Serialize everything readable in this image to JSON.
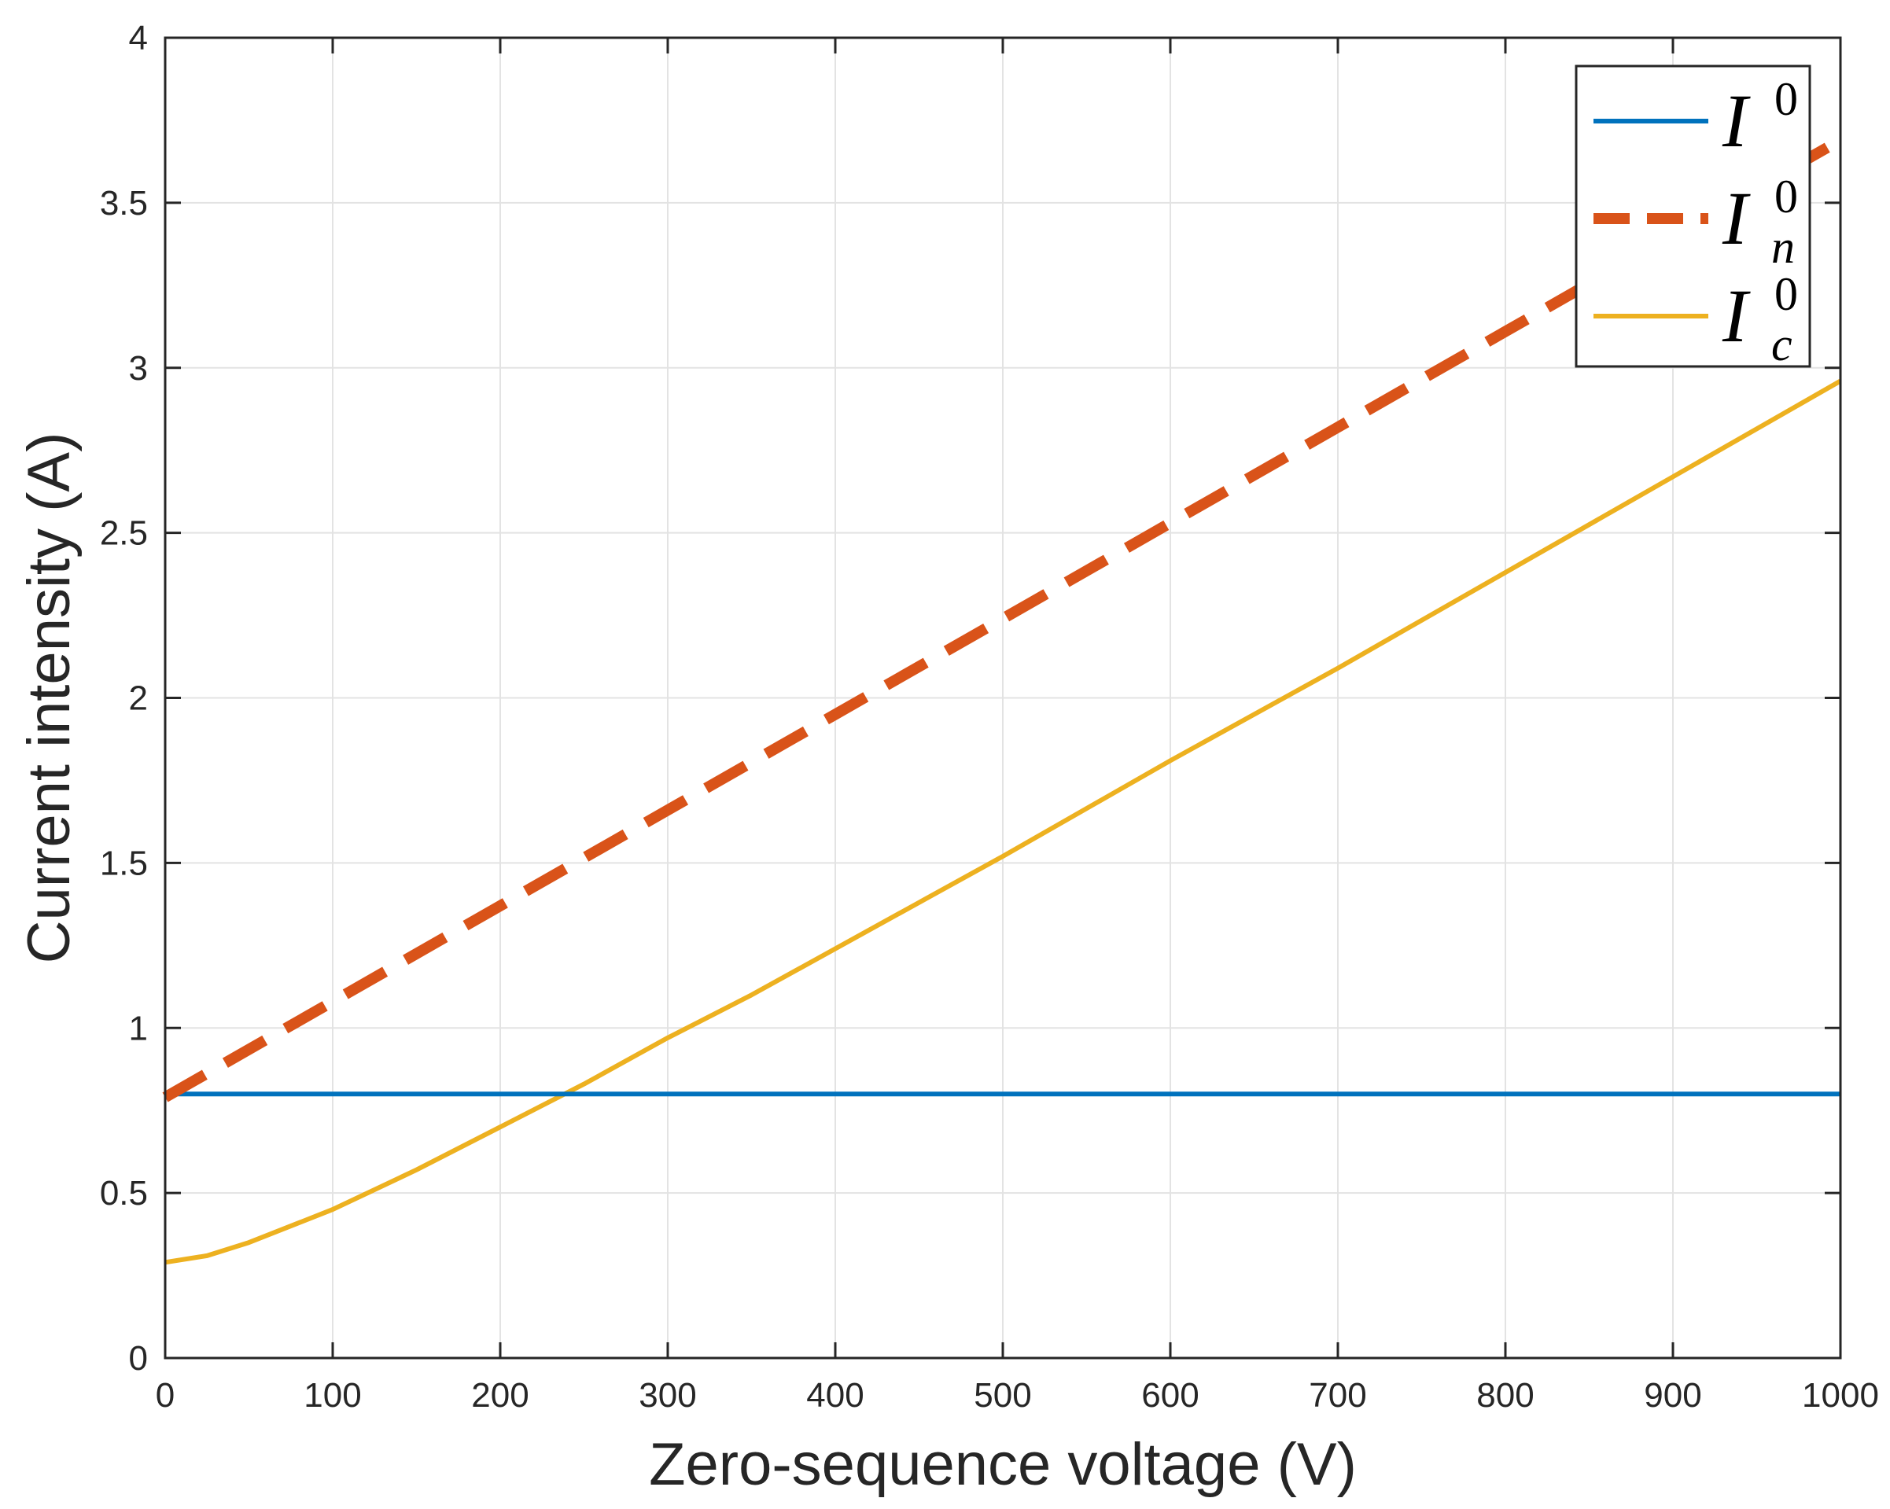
{
  "chart_data": {
    "type": "line",
    "xlabel": "Zero-sequence voltage (V)",
    "ylabel": "Current intensity (A)",
    "xlim": [
      0,
      1000
    ],
    "ylim": [
      0,
      4
    ],
    "xticks": [
      0,
      100,
      200,
      300,
      400,
      500,
      600,
      700,
      800,
      900,
      1000
    ],
    "yticks": [
      0,
      0.5,
      1,
      1.5,
      2,
      2.5,
      3,
      3.5,
      4
    ],
    "xtick_labels": [
      "0",
      "100",
      "200",
      "300",
      "400",
      "500",
      "600",
      "700",
      "800",
      "900",
      "1000"
    ],
    "ytick_labels": [
      "0",
      "0.5",
      "1",
      "1.5",
      "2",
      "2.5",
      "3",
      "3.5",
      "4"
    ],
    "grid": true,
    "legend_position": "top-right",
    "series": [
      {
        "name": "I^0",
        "legend": {
          "base": "I",
          "sup": "0",
          "sub": ""
        },
        "color": "#0072BD",
        "style": "solid",
        "x": [
          0,
          100,
          200,
          300,
          400,
          500,
          600,
          700,
          800,
          900,
          1000
        ],
        "y": [
          0.8,
          0.8,
          0.8,
          0.8,
          0.8,
          0.8,
          0.8,
          0.8,
          0.8,
          0.8,
          0.8
        ]
      },
      {
        "name": "I_n^0",
        "legend": {
          "base": "I",
          "sup": "0",
          "sub": "n"
        },
        "color": "#D95319",
        "style": "dashed",
        "x": [
          0,
          100,
          200,
          300,
          400,
          500,
          600,
          700,
          800,
          900,
          1000
        ],
        "y": [
          0.79,
          1.08,
          1.37,
          1.66,
          1.95,
          2.24,
          2.53,
          2.82,
          3.11,
          3.4,
          3.69
        ]
      },
      {
        "name": "I_c^0",
        "legend": {
          "base": "I",
          "sup": "0",
          "sub": "c"
        },
        "color": "#EDB120",
        "style": "solid",
        "x": [
          0,
          25,
          50,
          75,
          100,
          150,
          200,
          250,
          300,
          350,
          400,
          450,
          500,
          600,
          700,
          800,
          900,
          1000
        ],
        "y": [
          0.29,
          0.31,
          0.35,
          0.4,
          0.45,
          0.57,
          0.7,
          0.83,
          0.97,
          1.1,
          1.24,
          1.38,
          1.52,
          1.81,
          2.09,
          2.38,
          2.67,
          2.96
        ]
      }
    ]
  }
}
